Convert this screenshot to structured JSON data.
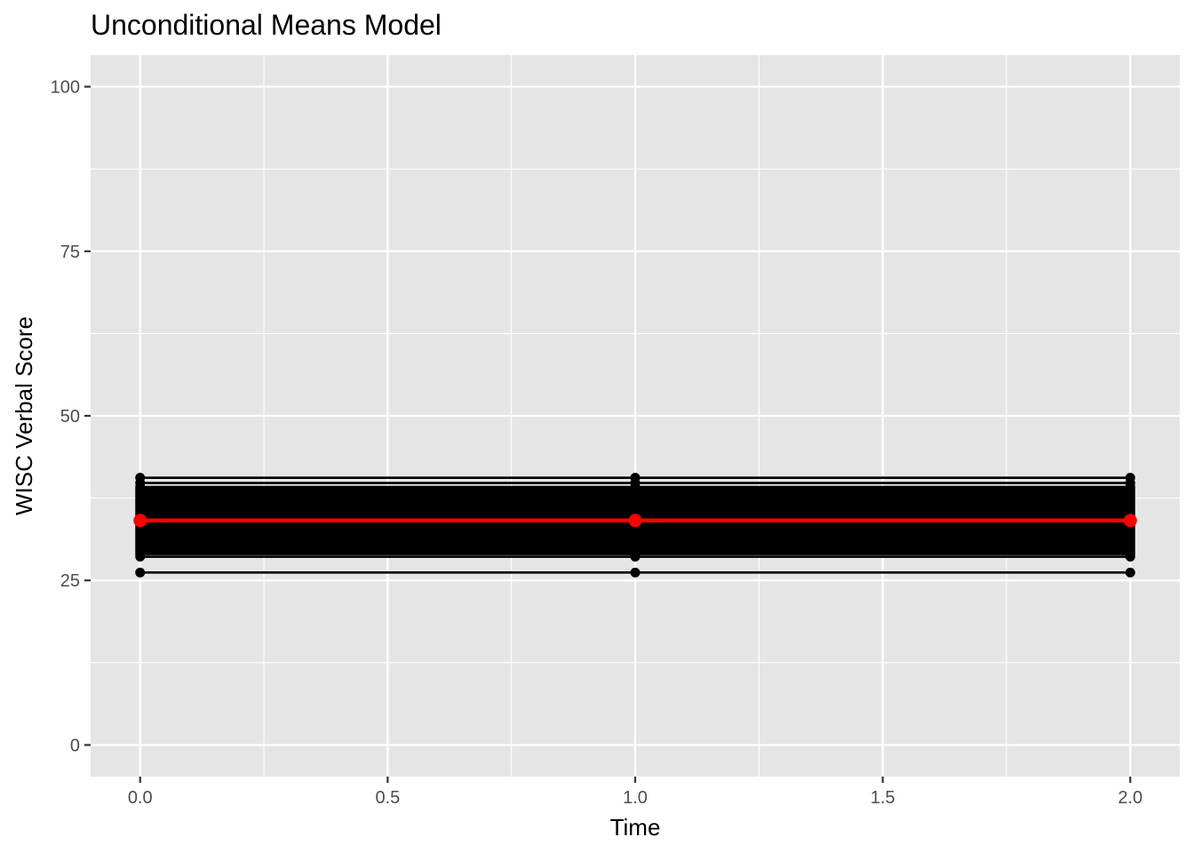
{
  "chart_data": {
    "type": "line",
    "title": "Unconditional Means Model",
    "xlabel": "Time",
    "ylabel": "WISC Verbal Score",
    "xlim": [
      -0.1,
      2.1
    ],
    "ylim": [
      -4.8,
      104.8
    ],
    "x_ticks": [
      0,
      0.5,
      1,
      1.5,
      2
    ],
    "x_tick_labels": [
      "0.0",
      "0.5",
      "1.0",
      "1.5",
      "2.0"
    ],
    "x_minor": [
      0.25,
      0.75,
      1.25,
      1.75
    ],
    "y_ticks": [
      0,
      25,
      50,
      75,
      100
    ],
    "y_tick_labels": [
      "0",
      "25",
      "50",
      "75",
      "100"
    ],
    "y_minor": [
      12.5,
      37.5,
      62.5,
      87.5
    ],
    "grid": true,
    "panel_color": "#e5e5e5",
    "grid_color": "#ffffff",
    "x": [
      0,
      1,
      2
    ],
    "individual_color": "#000000",
    "mean_color": "#ff0000",
    "individual_intercepts": [
      26.2,
      28.6,
      29.0,
      29.3,
      29.6,
      29.9,
      30.2,
      30.5,
      30.8,
      31.1,
      31.4,
      31.7,
      32.0,
      32.3,
      32.6,
      32.9,
      33.2,
      33.5,
      33.8,
      34.1,
      34.4,
      34.7,
      35.0,
      35.3,
      35.6,
      35.9,
      36.2,
      36.5,
      36.8,
      37.1,
      37.4,
      37.7,
      38.0,
      38.3,
      38.6,
      38.9,
      39.2,
      39.8,
      40.6
    ],
    "series": [
      {
        "values": [
          34.1,
          34.1,
          34.1
        ]
      }
    ]
  }
}
